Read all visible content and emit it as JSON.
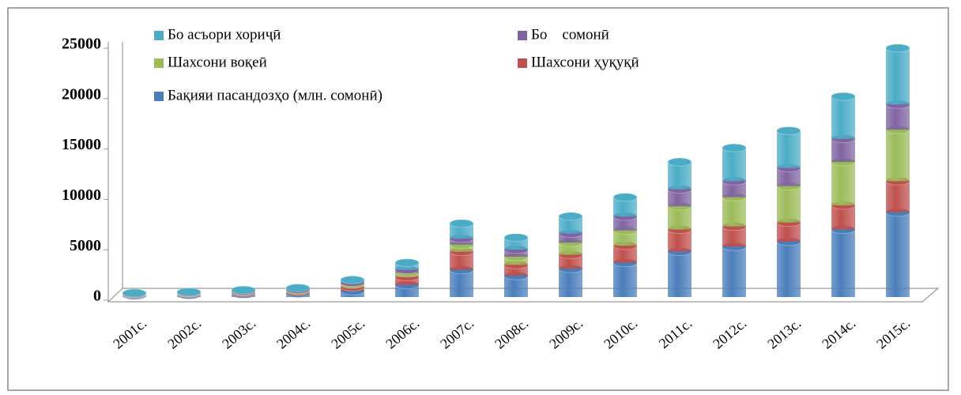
{
  "chart_data": {
    "type": "bar",
    "stacked": true,
    "categories": [
      "2001с.",
      "2002с.",
      "2003с.",
      "2004с.",
      "2005с.",
      "2006с.",
      "2007с.",
      "2008с.",
      "2009с.",
      "2010с.",
      "2011с.",
      "2012с.",
      "2013с.",
      "2014с.",
      "2015с."
    ],
    "series": [
      {
        "name": "Бақияи пасандозҳо (млн. сомонӣ)",
        "color": "#4a7ebb",
        "values": [
          150,
          200,
          280,
          350,
          600,
          1200,
          2700,
          2100,
          2800,
          3400,
          4500,
          5000,
          5500,
          6700,
          8400
        ]
      },
      {
        "name": "Шахсони ҳуқуқӣ",
        "color": "#c0504d",
        "values": [
          80,
          100,
          130,
          170,
          400,
          800,
          1800,
          1100,
          1400,
          1700,
          2200,
          2000,
          1900,
          2400,
          3100
        ]
      },
      {
        "name": "Шахсони воқеӣ",
        "color": "#9bbb59",
        "values": [
          60,
          70,
          100,
          130,
          250,
          400,
          700,
          800,
          1200,
          1500,
          2300,
          2900,
          3600,
          4300,
          5100
        ]
      },
      {
        "name": "Бо    сомонӣ",
        "color": "#8064a2",
        "values": [
          50,
          60,
          80,
          100,
          200,
          300,
          600,
          700,
          900,
          1400,
          1700,
          1600,
          1800,
          2300,
          2500
        ]
      },
      {
        "name": "Бо асъори хориҷӣ",
        "color": "#4bacc6",
        "values": [
          60,
          70,
          110,
          150,
          250,
          700,
          1500,
          1200,
          1700,
          1900,
          2700,
          3300,
          3700,
          4200,
          5600
        ]
      }
    ],
    "ylim": [
      0,
      25000
    ],
    "yticks": [
      0,
      5000,
      10000,
      15000,
      20000,
      25000
    ],
    "legend": "top-left"
  }
}
